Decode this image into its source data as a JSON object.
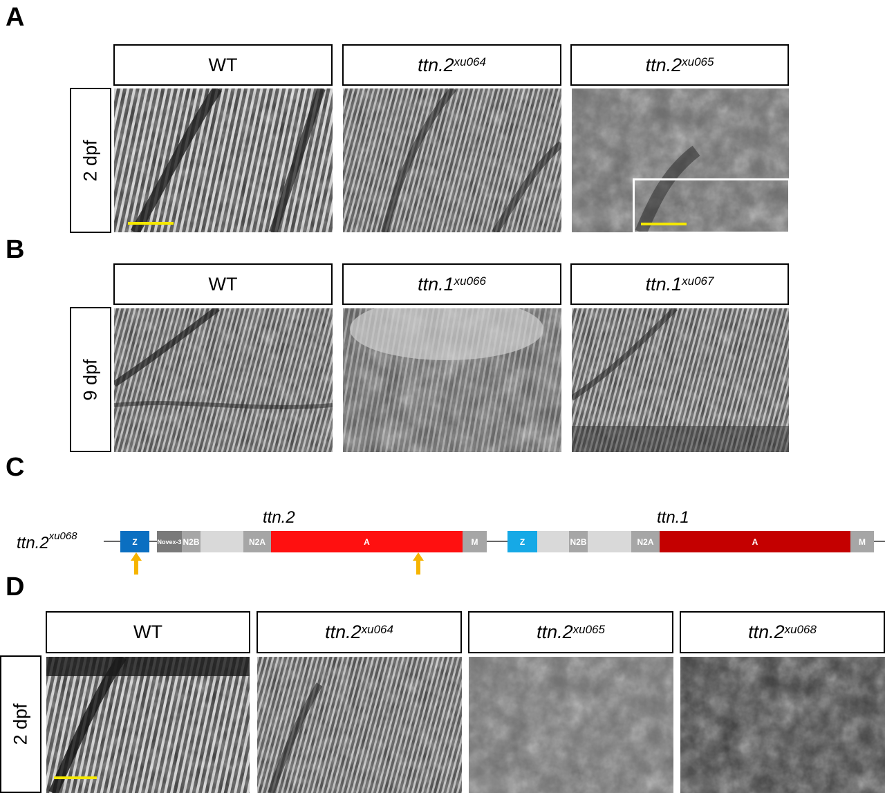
{
  "panels": {
    "A": {
      "letter": "A",
      "headers": [
        {
          "base": "WT",
          "sup": "",
          "italic": false
        },
        {
          "base": "ttn.2",
          "sup": "xu064",
          "italic": true
        },
        {
          "base": "ttn.2",
          "sup": "xu065",
          "italic": true
        }
      ],
      "side_label": "2 dpf"
    },
    "B": {
      "letter": "B",
      "headers": [
        {
          "base": "WT",
          "sup": "",
          "italic": false
        },
        {
          "base": "ttn.1",
          "sup": "xu066",
          "italic": true
        },
        {
          "base": "ttn.1",
          "sup": "xu067",
          "italic": true
        }
      ],
      "side_label": "9 dpf"
    },
    "C": {
      "letter": "C",
      "allele": {
        "base": "ttn.2",
        "sup": "xu068"
      },
      "gene1": {
        "name": "ttn.2",
        "domains": {
          "z": "Z",
          "novex": "Novex-3",
          "n2b": "N2B",
          "n2a": "N2A",
          "a": "A",
          "m": "M"
        }
      },
      "gene2": {
        "name": "ttn.1",
        "domains": {
          "z": "Z",
          "n2b": "N2B",
          "n2a": "N2A",
          "a": "A",
          "m": "M"
        }
      },
      "colors": {
        "z1": "#0b6fc1",
        "z2": "#16a9e6",
        "a1": "#ff1010",
        "a2": "#c40000",
        "novex": "#7a7a7a",
        "grey": "#a6a6a6",
        "light": "#d9d9d9",
        "arrow": "#f6b400"
      }
    },
    "D": {
      "letter": "D",
      "headers": [
        {
          "base": "WT",
          "sup": "",
          "italic": false
        },
        {
          "base": "ttn.2",
          "sup": "xu064",
          "italic": true
        },
        {
          "base": "ttn.2",
          "sup": "xu065",
          "italic": true
        },
        {
          "base": "ttn.2",
          "sup": "xu068",
          "italic": true
        }
      ],
      "side_label": "2 dpf"
    }
  }
}
